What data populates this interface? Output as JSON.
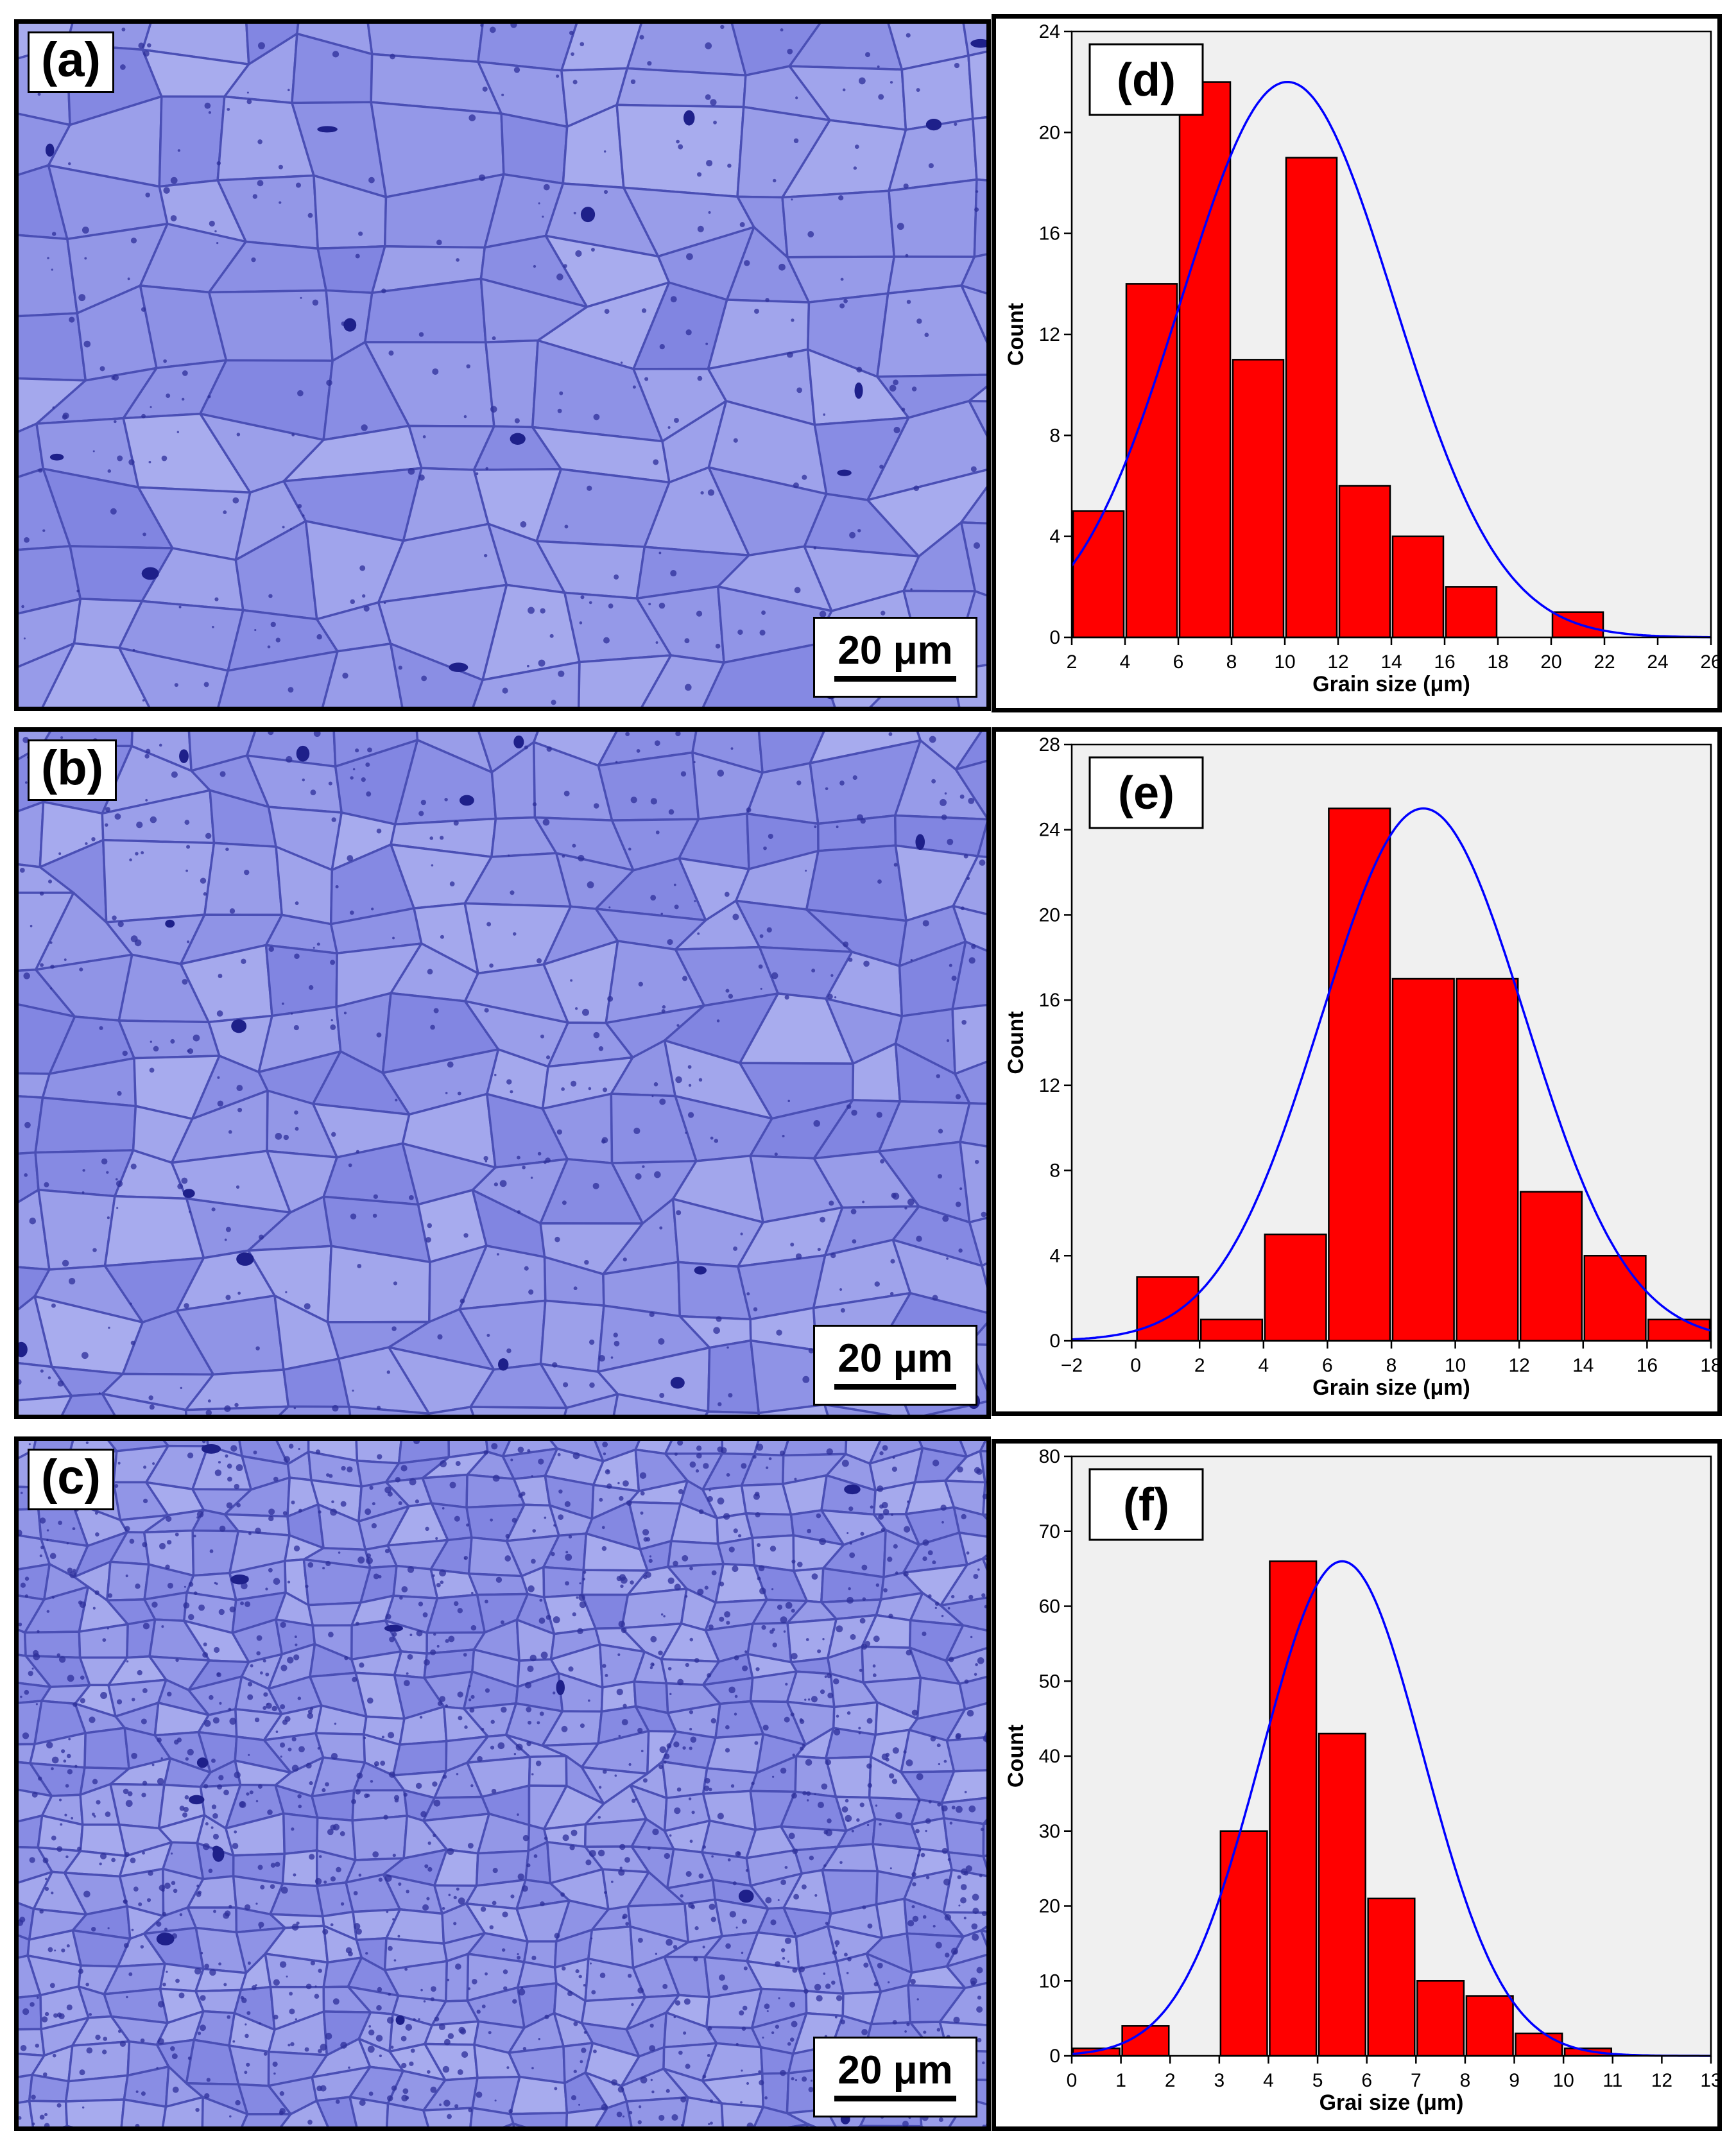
{
  "scale_bar": {
    "label": "20 μm"
  },
  "micrographs": [
    {
      "label": "(a)",
      "grain_size": "coarse"
    },
    {
      "label": "(b)",
      "grain_size": "medium"
    },
    {
      "label": "(c)",
      "grain_size": "fine"
    }
  ],
  "chart_data": [
    {
      "type": "bar",
      "panel_label": "(d)",
      "xlabel": "Grain size (μm)",
      "ylabel": "Count",
      "xlim": [
        2,
        26
      ],
      "ylim": [
        0,
        24
      ],
      "xticks": [
        2,
        4,
        6,
        8,
        10,
        12,
        14,
        16,
        18,
        20,
        22,
        24,
        26
      ],
      "yticks": [
        0,
        4,
        8,
        12,
        16,
        20,
        24
      ],
      "bin_width": 2,
      "bins": [
        {
          "center": 3,
          "count": 5
        },
        {
          "center": 5,
          "count": 14
        },
        {
          "center": 7,
          "count": 22
        },
        {
          "center": 9,
          "count": 11
        },
        {
          "center": 11,
          "count": 19
        },
        {
          "center": 13,
          "count": 6
        },
        {
          "center": 15,
          "count": 4
        },
        {
          "center": 17,
          "count": 2
        },
        {
          "center": 21,
          "count": 1
        }
      ],
      "bar_color": "#ff0000",
      "fit": {
        "type": "normal",
        "mean": 10.1,
        "sd": 4.0,
        "peak": 22,
        "color": "#0000ff"
      }
    },
    {
      "type": "bar",
      "panel_label": "(e)",
      "xlabel": "Grain size (μm)",
      "ylabel": "Count",
      "xlim": [
        -2,
        18
      ],
      "ylim": [
        0,
        28
      ],
      "xticks": [
        -2,
        0,
        2,
        4,
        6,
        8,
        10,
        12,
        14,
        16,
        18
      ],
      "xtick_labels": [
        "−2",
        "0",
        "2",
        "4",
        "6",
        "8",
        "10",
        "12",
        "14",
        "16",
        "18"
      ],
      "yticks": [
        0,
        4,
        8,
        12,
        16,
        20,
        24,
        28
      ],
      "bin_width": 2,
      "bins": [
        {
          "center": 1,
          "count": 3
        },
        {
          "center": 3,
          "count": 1
        },
        {
          "center": 5,
          "count": 5
        },
        {
          "center": 7,
          "count": 25
        },
        {
          "center": 9,
          "count": 17
        },
        {
          "center": 11,
          "count": 17
        },
        {
          "center": 13,
          "count": 7
        },
        {
          "center": 15,
          "count": 4
        },
        {
          "center": 17,
          "count": 1
        }
      ],
      "bar_color": "#ff0000",
      "fit": {
        "type": "normal",
        "mean": 9.0,
        "sd": 3.2,
        "peak": 25,
        "color": "#0000ff"
      }
    },
    {
      "type": "bar",
      "panel_label": "(f)",
      "xlabel": "Grai size (μm)",
      "ylabel": "Count",
      "xlim": [
        0,
        13
      ],
      "ylim": [
        0,
        80
      ],
      "xticks": [
        0,
        1,
        2,
        3,
        4,
        5,
        6,
        7,
        8,
        9,
        10,
        11,
        12,
        13
      ],
      "yticks": [
        0,
        10,
        20,
        30,
        40,
        50,
        60,
        70,
        80
      ],
      "bin_width": 1,
      "bins": [
        {
          "center": 0.5,
          "count": 1
        },
        {
          "center": 1.5,
          "count": 4
        },
        {
          "center": 3.5,
          "count": 30
        },
        {
          "center": 4.5,
          "count": 66
        },
        {
          "center": 5.5,
          "count": 43
        },
        {
          "center": 6.5,
          "count": 21
        },
        {
          "center": 7.5,
          "count": 10
        },
        {
          "center": 8.5,
          "count": 8
        },
        {
          "center": 9.5,
          "count": 3
        },
        {
          "center": 10.5,
          "count": 1
        }
      ],
      "bar_color": "#ff0000",
      "fit": {
        "type": "normal",
        "mean": 5.5,
        "sd": 1.65,
        "peak": 66,
        "color": "#0000ff"
      }
    }
  ]
}
